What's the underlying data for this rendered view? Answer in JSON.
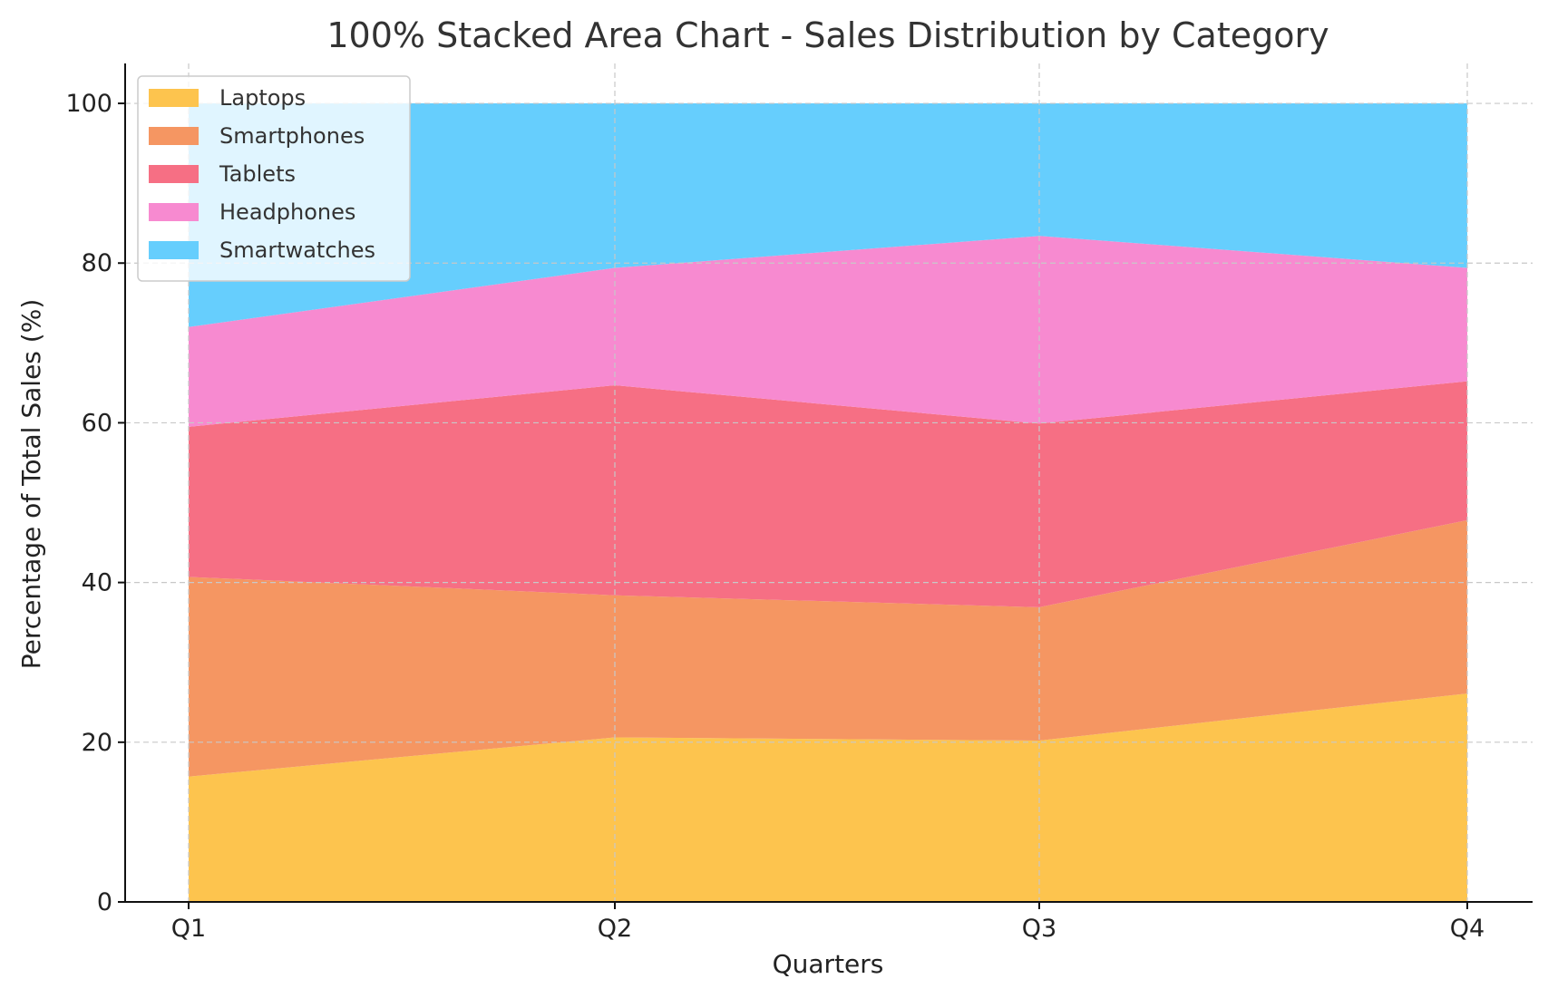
{
  "chart_data": {
    "type": "area",
    "stacked": "percent",
    "title": "100% Stacked Area Chart - Sales Distribution by Category",
    "xlabel": "Quarters",
    "ylabel": "Percentage of Total Sales (%)",
    "categories": [
      "Q1",
      "Q2",
      "Q3",
      "Q4"
    ],
    "ylim": [
      0,
      105
    ],
    "yticks": [
      0,
      20,
      40,
      60,
      80,
      100
    ],
    "grid": true,
    "legend_position": "top-left",
    "series": [
      {
        "name": "Laptops",
        "color": "#FDC44E",
        "values": [
          15.7,
          20.6,
          20.2,
          26.1
        ]
      },
      {
        "name": "Smartphones",
        "color": "#F59662",
        "values": [
          25.0,
          17.8,
          16.7,
          21.7
        ]
      },
      {
        "name": "Tablets",
        "color": "#F66F84",
        "values": [
          18.8,
          26.3,
          23.0,
          17.4
        ]
      },
      {
        "name": "Headphones",
        "color": "#F78AD0",
        "values": [
          12.5,
          14.7,
          23.5,
          14.2
        ]
      },
      {
        "name": "Smartwatches",
        "color": "#66CEFD",
        "values": [
          28.0,
          20.6,
          16.6,
          20.6
        ]
      }
    ]
  }
}
